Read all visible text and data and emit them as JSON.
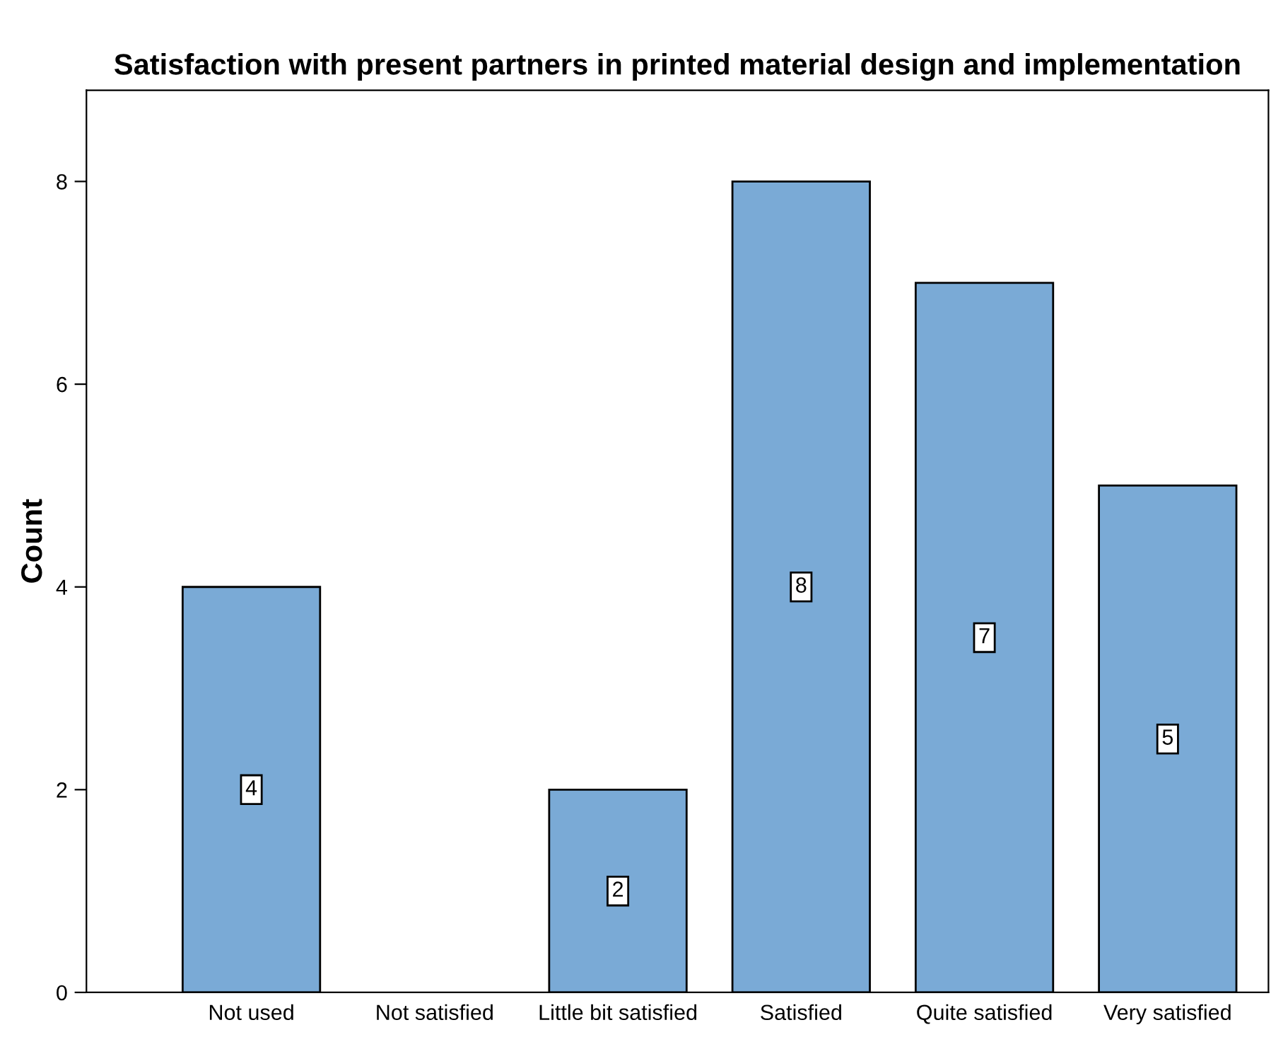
{
  "chart_data": {
    "type": "bar",
    "title": "Satisfaction with present partners in printed material design and implementation",
    "ylabel": "Count",
    "categories": [
      "Not used",
      "Not satisfied",
      "Little bit satisfied",
      "Satisfied",
      "Quite satisfied",
      "Very satisfied"
    ],
    "values": [
      4,
      0,
      2,
      8,
      7,
      5
    ],
    "value_labels": [
      "4",
      null,
      "2",
      "8",
      "7",
      "5"
    ],
    "color": "#7aaad6",
    "ylim": [
      0,
      8.9
    ],
    "yticks": [
      0,
      2,
      4,
      6,
      8
    ],
    "grid": false
  }
}
